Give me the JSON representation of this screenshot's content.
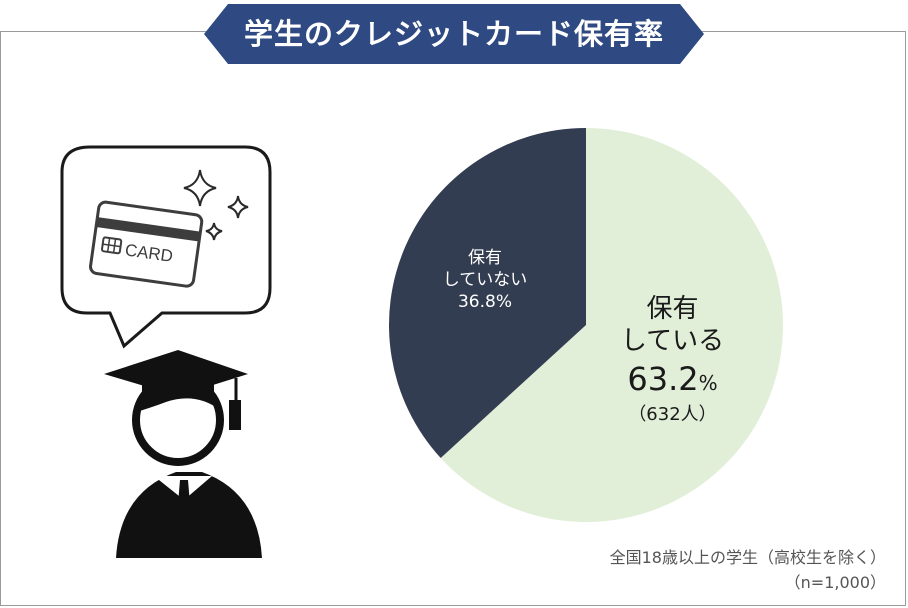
{
  "title": "学生のクレジットカード保有率",
  "card_text": "CARD",
  "chart_data": {
    "type": "pie",
    "title": "学生のクレジットカード保有率",
    "slices": [
      {
        "label_line1": "保有",
        "label_line2": "している",
        "value": 63.2,
        "value_text": "63.2",
        "unit": "%",
        "count_text": "（632人）",
        "color": "#e2efd8"
      },
      {
        "label_line1": "保有",
        "label_line2": "していない",
        "value": 36.8,
        "value_text": "36.8%",
        "color": "#333d51"
      }
    ]
  },
  "footnote": {
    "line1": "全国18歳以上の学生（高校生を除く）",
    "line2": "（n=1,000）"
  },
  "colors": {
    "banner": "#2f4a82",
    "owned": "#e2efd8",
    "not_owned": "#333d51"
  }
}
